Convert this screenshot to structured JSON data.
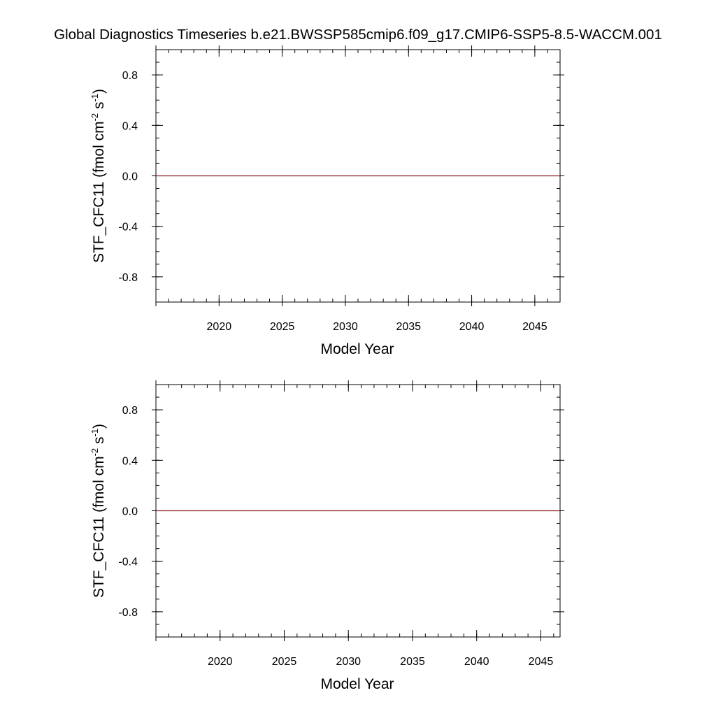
{
  "page": {
    "title": "Global Diagnostics Timeseries b.e21.BWSSP585cmip6.f09_g17.CMIP6-SSP5-8.5-WACCM.001"
  },
  "chart_data": [
    {
      "type": "line",
      "xlabel": "Model Year",
      "ylabel": "STF_CFC11 (fmol cm-2 s-1)",
      "ylabel_parts": {
        "base": "STF_CFC11 (fmol cm",
        "exp1": "-2",
        "mid": " s",
        "exp2": "-1",
        "end": ")"
      },
      "xlim": [
        2015,
        2047
      ],
      "ylim": [
        -1.0,
        1.0
      ],
      "x_major_ticks": [
        2015,
        2020,
        2025,
        2030,
        2035,
        2040,
        2045
      ],
      "x_tick_labels": [
        "2020",
        "2025",
        "2030",
        "2035",
        "2040",
        "2045"
      ],
      "y_ticks": [
        -0.8,
        -0.4,
        0.0,
        0.4,
        0.8
      ],
      "y_tick_labels": [
        "-0.8",
        "-0.4",
        "0.0",
        "0.4",
        "0.8"
      ],
      "grid": false,
      "series": [
        {
          "color": "#8b1a1a",
          "x": [
            2015,
            2047
          ],
          "y": [
            0.0,
            0.0
          ]
        }
      ]
    },
    {
      "type": "line",
      "xlabel": "Model Year",
      "ylabel": "STF_CFC11 (fmol cm-2 s-1)",
      "ylabel_parts": {
        "base": "STF_CFC11 (fmol cm",
        "exp1": "-2",
        "mid": " s",
        "exp2": "-1",
        "end": ")"
      },
      "xlim": [
        2015,
        2046.5
      ],
      "ylim": [
        -1.0,
        1.0
      ],
      "x_major_ticks": [
        2015,
        2020,
        2025,
        2030,
        2035,
        2040,
        2045
      ],
      "x_tick_labels": [
        "2020",
        "2025",
        "2030",
        "2035",
        "2040",
        "2045"
      ],
      "y_ticks": [
        -0.8,
        -0.4,
        0.0,
        0.4,
        0.8
      ],
      "y_tick_labels": [
        "-0.8",
        "-0.4",
        "0.0",
        "0.4",
        "0.8"
      ],
      "grid": false,
      "series": [
        {
          "color": "#8b1a1a",
          "x": [
            2015,
            2046.5
          ],
          "y": [
            0.0,
            0.0
          ]
        }
      ]
    }
  ]
}
